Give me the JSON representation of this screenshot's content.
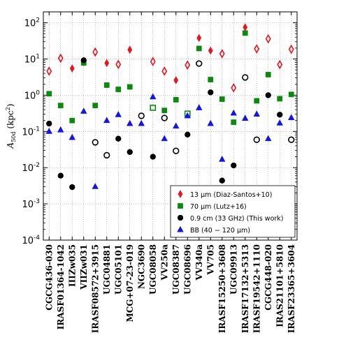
{
  "chart_data": {
    "type": "scatter",
    "ylabel": "A50d (kpc²)",
    "ylabel_parts": {
      "main": "A",
      "sub": "50d",
      "unit": "(kpc",
      "sup": "2",
      "close": ")"
    },
    "yscale": "log",
    "ylim": [
      0.0001,
      200
    ],
    "y_tick_labels": [
      {
        "base": "10",
        "exp": "2",
        "value": 100
      },
      {
        "base": "10",
        "exp": "1",
        "value": 10
      },
      {
        "base": "10",
        "exp": "0",
        "value": 1
      },
      {
        "base": "10",
        "exp": "-1",
        "value": 0.1
      },
      {
        "base": "10",
        "exp": "-2",
        "value": 0.01
      },
      {
        "base": "10",
        "exp": "-3",
        "value": 0.001
      },
      {
        "base": "10",
        "exp": "-4",
        "value": 0.0001
      }
    ],
    "grid": true,
    "legend_position": "lower-right",
    "categories": [
      "CGCG436-030",
      "IRASF01364-1042",
      "IIIZw035",
      "VIIZw031",
      "IRASF08572+3915",
      "UGC04881",
      "UGC05101",
      "MCG+07-23-019",
      "NGC3690",
      "UGC08058",
      "VV250a",
      "UGC08387",
      "UGC08696",
      "VV340a",
      "VV705",
      "IRASF15250+3608",
      "UGC09913",
      "IRASF17132+5313",
      "IRASF19542+1110",
      "CGCG448-020",
      "IRAS21101+5810",
      "IRASF23365+3604"
    ],
    "series": [
      {
        "name": "13 μm (Diaz-Santos+10)",
        "legend_label": "13 μm (Diaz-Santos+10)",
        "marker": "diamond",
        "color": "#e8141e",
        "points": [
          {
            "x": "CGCG436-030",
            "y": 4.6,
            "filled": false
          },
          {
            "x": "IRASF01364-1042",
            "y": 10.5,
            "filled": false
          },
          {
            "x": "IIIZw035",
            "y": 5.5,
            "filled": true
          },
          {
            "x": "VIIZw031",
            "y": 8.5,
            "filled": false
          },
          {
            "x": "IRASF08572+3915",
            "y": 15.5,
            "filled": false
          },
          {
            "x": "UGC04881",
            "y": 7.7,
            "filled": true
          },
          {
            "x": "UGC05101",
            "y": 7.1,
            "filled": false
          },
          {
            "x": "MCG+07-23-019",
            "y": 18.0,
            "filled": true
          },
          {
            "x": "UGC08058",
            "y": 8.5,
            "filled": false
          },
          {
            "x": "VV250a",
            "y": 4.6,
            "filled": false
          },
          {
            "x": "UGC08387",
            "y": 2.6,
            "filled": true
          },
          {
            "x": "UGC08696",
            "y": 6.8,
            "filled": false
          },
          {
            "x": "VV340a",
            "y": 38.0,
            "filled": true
          },
          {
            "x": "VV705",
            "y": 17.0,
            "filled": true
          },
          {
            "x": "IRASF15250+3608",
            "y": 14.0,
            "filled": false
          },
          {
            "x": "UGC09913",
            "y": 1.6,
            "filled": false
          },
          {
            "x": "IRASF17132+5313",
            "y": 75.0,
            "filled": true
          },
          {
            "x": "IRASF19542+1110",
            "y": 19.0,
            "filled": false
          },
          {
            "x": "CGCG448-020",
            "y": 36.0,
            "filled": false
          },
          {
            "x": "IRAS21101+5810",
            "y": 7.0,
            "filled": false
          },
          {
            "x": "IRASF23365+3604",
            "y": 18.5,
            "filled": false
          }
        ]
      },
      {
        "name": "70 μm (Lutz+16)",
        "legend_label": "70 μm (Lutz+16)",
        "marker": "square",
        "color": "#0a8a0a",
        "points": [
          {
            "x": "CGCG436-030",
            "y": 1.1,
            "filled": true
          },
          {
            "x": "IRASF01364-1042",
            "y": 0.52,
            "filled": true
          },
          {
            "x": "IIIZw035",
            "y": 0.2,
            "filled": true
          },
          {
            "x": "VIIZw031",
            "y": 7.8,
            "filled": true
          },
          {
            "x": "IRASF08572+3915",
            "y": 0.52,
            "filled": true
          },
          {
            "x": "UGC04881",
            "y": 1.9,
            "filled": true
          },
          {
            "x": "UGC05101",
            "y": 1.45,
            "filled": true
          },
          {
            "x": "MCG+07-23-019",
            "y": 1.7,
            "filled": true
          },
          {
            "x": "UGC08058",
            "y": 0.45,
            "filled": false
          },
          {
            "x": "VV250a",
            "y": 0.38,
            "filled": true
          },
          {
            "x": "UGC08387",
            "y": 0.75,
            "filled": true
          },
          {
            "x": "UGC08696",
            "y": 0.31,
            "filled": false
          },
          {
            "x": "VV340a",
            "y": 19.5,
            "filled": true
          },
          {
            "x": "VV705",
            "y": 2.7,
            "filled": true
          },
          {
            "x": "IRASF15250+3608",
            "y": 0.78,
            "filled": true
          },
          {
            "x": "UGC09913",
            "y": 0.18,
            "filled": true
          },
          {
            "x": "IRASF17132+5313",
            "y": 52.0,
            "filled": true
          },
          {
            "x": "IRASF19542+1110",
            "y": 0.7,
            "filled": true
          },
          {
            "x": "CGCG448-020",
            "y": 3.7,
            "filled": true
          },
          {
            "x": "IRAS21101+5810",
            "y": 0.8,
            "filled": true
          },
          {
            "x": "IRASF23365+3604",
            "y": 1.05,
            "filled": true
          }
        ]
      },
      {
        "name": "0.9 cm (33 GHz) (This work)",
        "legend_label": "0.9 cm (33 GHz) (This work)",
        "marker": "circle",
        "color": "#000000",
        "points": [
          {
            "x": "CGCG436-030",
            "y": 0.165,
            "filled": true
          },
          {
            "x": "IRASF01364-1042",
            "y": 0.006,
            "filled": true
          },
          {
            "x": "IIIZw035",
            "y": 0.0029,
            "filled": true
          },
          {
            "x": "VIIZw031",
            "y": 9.2,
            "filled": true
          },
          {
            "x": "IRASF08572+3915",
            "y": 0.05,
            "filled": false
          },
          {
            "x": "UGC04881",
            "y": 0.022,
            "filled": false
          },
          {
            "x": "UGC05101",
            "y": 0.063,
            "filled": true
          },
          {
            "x": "MCG+07-23-019",
            "y": 0.027,
            "filled": true
          },
          {
            "x": "NGC3690",
            "y": 0.27,
            "filled": false
          },
          {
            "x": "UGC08058",
            "y": 0.02,
            "filled": true
          },
          {
            "x": "VV250a",
            "y": 0.235,
            "filled": false
          },
          {
            "x": "UGC08387",
            "y": 0.029,
            "filled": false
          },
          {
            "x": "UGC08696",
            "y": 0.082,
            "filled": true
          },
          {
            "x": "VV340a",
            "y": 7.5,
            "filled": false
          },
          {
            "x": "VV705",
            "y": 1.2,
            "filled": true
          },
          {
            "x": "IRASF15250+3608",
            "y": 0.0044,
            "filled": true
          },
          {
            "x": "UGC09913",
            "y": 0.0115,
            "filled": true
          },
          {
            "x": "IRASF17132+5313",
            "y": 3.1,
            "filled": false
          },
          {
            "x": "IRASF19542+1110",
            "y": 0.059,
            "filled": false
          },
          {
            "x": "CGCG448-020",
            "y": 1.0,
            "filled": true
          },
          {
            "x": "IRAS21101+5810",
            "y": 0.29,
            "filled": true
          },
          {
            "x": "IRASF23365+3604",
            "y": 0.059,
            "filled": false
          }
        ]
      },
      {
        "name": "BB (40 – 120 μm)",
        "legend_label": "BB (40 − 120 μm)",
        "marker": "triangle",
        "color": "#1414e6",
        "points": [
          {
            "x": "CGCG436-030",
            "y": 0.1,
            "filled": true
          },
          {
            "x": "IRASF01364-1042",
            "y": 0.11,
            "filled": true
          },
          {
            "x": "IIIZw035",
            "y": 0.068,
            "filled": true
          },
          {
            "x": "VIIZw031",
            "y": 0.36,
            "filled": true
          },
          {
            "x": "IRASF08572+3915",
            "y": 0.003,
            "filled": true
          },
          {
            "x": "UGC04881",
            "y": 0.2,
            "filled": true
          },
          {
            "x": "UGC05101",
            "y": 0.29,
            "filled": true
          },
          {
            "x": "MCG+07-23-019",
            "y": 0.165,
            "filled": true
          },
          {
            "x": "NGC3690",
            "y": 0.165,
            "filled": true
          },
          {
            "x": "UGC08058",
            "y": 0.9,
            "filled": true
          },
          {
            "x": "VV250a",
            "y": 0.063,
            "filled": true
          },
          {
            "x": "UGC08387",
            "y": 0.14,
            "filled": true
          },
          {
            "x": "UGC08696",
            "y": 0.27,
            "filled": true
          },
          {
            "x": "VV340a",
            "y": 0.45,
            "filled": true
          },
          {
            "x": "VV705",
            "y": 0.165,
            "filled": true
          },
          {
            "x": "IRASF15250+3608",
            "y": 0.017,
            "filled": true
          },
          {
            "x": "UGC09913",
            "y": 0.32,
            "filled": true
          },
          {
            "x": "IRASF17132+5313",
            "y": 0.23,
            "filled": true
          },
          {
            "x": "IRASF19542+1110",
            "y": 0.3,
            "filled": true
          },
          {
            "x": "CGCG448-020",
            "y": 0.063,
            "filled": true
          },
          {
            "x": "IRAS21101+5810",
            "y": 0.17,
            "filled": true
          },
          {
            "x": "IRASF23365+3604",
            "y": 0.24,
            "filled": true
          }
        ]
      }
    ]
  }
}
